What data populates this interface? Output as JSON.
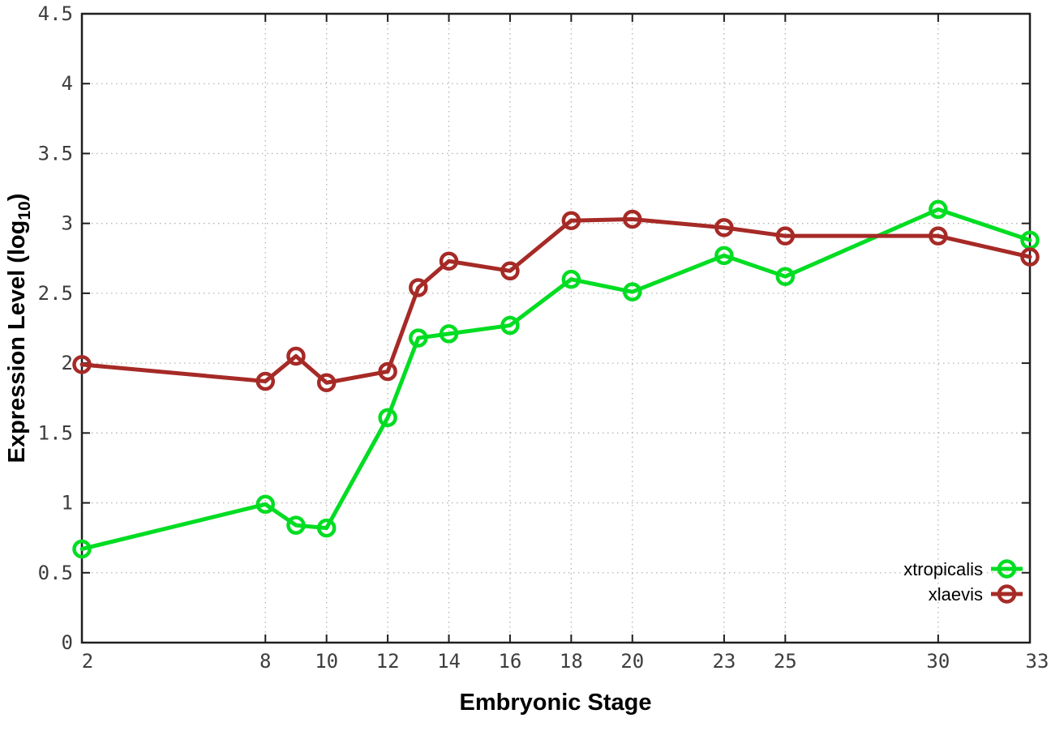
{
  "chart_data": {
    "type": "line",
    "title": "",
    "xlabel": "Embryonic Stage",
    "ylabel": "Expression Level (log10)",
    "ylabel_parts": {
      "main": "Expression Level (log",
      "sub": "10",
      "close": ")"
    },
    "x": [
      2,
      8,
      9,
      10,
      12,
      13,
      14,
      16,
      18,
      20,
      23,
      25,
      30,
      33
    ],
    "series": [
      {
        "name": "xtropicalis",
        "color": "#00dd22",
        "values": [
          0.67,
          0.99,
          0.84,
          0.82,
          1.61,
          2.18,
          2.21,
          2.27,
          2.6,
          2.51,
          2.77,
          2.62,
          3.1,
          2.88
        ]
      },
      {
        "name": "xlaevis",
        "color": "#a62a26",
        "values": [
          1.99,
          1.87,
          2.05,
          1.86,
          1.94,
          2.54,
          2.73,
          2.66,
          3.02,
          3.03,
          2.97,
          2.91,
          2.91,
          2.76
        ]
      }
    ],
    "xlim": [
      2,
      33
    ],
    "ylim": [
      0,
      4.5
    ],
    "x_ticks": {
      "values": [
        2,
        8,
        10,
        12,
        14,
        16,
        18,
        20,
        23,
        25,
        30,
        33
      ],
      "labels": [
        "2",
        "8",
        "10",
        "12",
        "14",
        "16",
        "18",
        "20",
        "23",
        "25",
        "30",
        "33"
      ]
    },
    "y_ticks": {
      "values": [
        0,
        0.5,
        1,
        1.5,
        2,
        2.5,
        3,
        3.5,
        4,
        4.5
      ],
      "labels": [
        "0",
        "0.5",
        "1",
        "1.5",
        "2",
        "2.5",
        "3",
        "3.5",
        "4",
        "4.5"
      ]
    },
    "grid": true,
    "legend_position": "bottom-right",
    "colors": {
      "background": "#ffffff",
      "grid": "#b4b4b4",
      "frame": "#1f1f1f",
      "tick_text": "#3d3d3d",
      "title_text": "#000000"
    }
  }
}
